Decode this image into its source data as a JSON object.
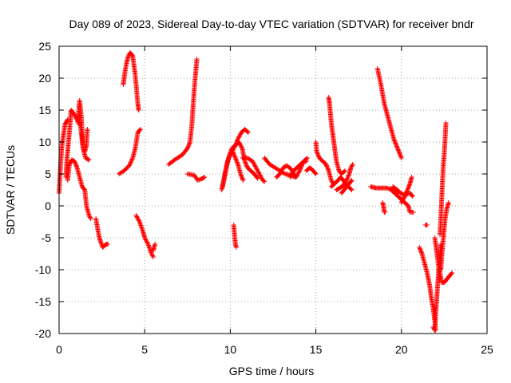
{
  "chart_data": {
    "type": "scatter",
    "title": "Day 089 of 2023, Sidereal Day-to-day VTEC variation (SDTVAR) for receiver bndr",
    "xlabel": "GPS time / hours",
    "ylabel": "SDTVAR / TECUs",
    "xlim": [
      0,
      25
    ],
    "ylim": [
      -20,
      25
    ],
    "x_ticks": [
      0,
      5,
      10,
      15,
      20,
      25
    ],
    "y_ticks": [
      -20,
      -15,
      -10,
      -5,
      0,
      5,
      10,
      15,
      20,
      25
    ],
    "x_tick_labels": [
      "0",
      "5",
      "10",
      "15",
      "20",
      "25"
    ],
    "y_tick_labels": [
      "-20",
      "-15",
      "-10",
      "-5",
      "0",
      "5",
      "10",
      "15",
      "20",
      "25"
    ],
    "grid": true,
    "legend": "none",
    "marker": "+",
    "color": "#ff0000",
    "tracks": [
      [
        [
          0.0,
          2.0
        ],
        [
          0.05,
          4.5
        ],
        [
          0.1,
          7.0
        ],
        [
          0.15,
          9.0
        ],
        [
          0.25,
          11.0
        ],
        [
          0.35,
          12.8
        ],
        [
          0.5,
          13.5
        ]
      ],
      [
        [
          0.4,
          4.5
        ],
        [
          0.45,
          7.0
        ],
        [
          0.55,
          10.0
        ],
        [
          0.65,
          13.0
        ],
        [
          0.7,
          15.0
        ],
        [
          0.85,
          14.5
        ],
        [
          1.05,
          13.5
        ],
        [
          1.25,
          12.5
        ],
        [
          1.4,
          9.0
        ],
        [
          1.55,
          7.5
        ],
        [
          1.75,
          7.2
        ]
      ],
      [
        [
          0.5,
          4.0
        ],
        [
          0.6,
          6.5
        ],
        [
          0.75,
          7.2
        ],
        [
          0.9,
          7.0
        ],
        [
          1.05,
          6.0
        ],
        [
          1.2,
          4.5
        ],
        [
          1.35,
          3.0
        ],
        [
          1.5,
          2.5
        ],
        [
          1.6,
          0.0
        ],
        [
          1.75,
          -1.5
        ],
        [
          1.85,
          -2.0
        ]
      ],
      [
        [
          1.1,
          13.0
        ],
        [
          1.15,
          15.0
        ],
        [
          1.2,
          16.5
        ],
        [
          1.3,
          14.0
        ],
        [
          1.35,
          11.0
        ],
        [
          1.4,
          9.0
        ],
        [
          1.5,
          8.5
        ],
        [
          1.6,
          9.5
        ],
        [
          1.65,
          12.0
        ]
      ],
      [
        [
          2.15,
          -2.0
        ],
        [
          2.25,
          -3.5
        ],
        [
          2.35,
          -5.0
        ],
        [
          2.45,
          -5.8
        ],
        [
          2.55,
          -6.5
        ],
        [
          2.75,
          -6.0
        ],
        [
          2.85,
          -6.0
        ]
      ],
      [
        [
          3.5,
          5.0
        ],
        [
          3.8,
          5.5
        ],
        [
          4.1,
          6.3
        ],
        [
          4.3,
          7.5
        ],
        [
          4.45,
          9.0
        ],
        [
          4.6,
          11.5
        ],
        [
          4.75,
          12.0
        ]
      ],
      [
        [
          3.75,
          19.0
        ],
        [
          3.85,
          21.0
        ],
        [
          3.95,
          22.5
        ],
        [
          4.05,
          23.5
        ],
        [
          4.15,
          24.0
        ],
        [
          4.3,
          23.5
        ],
        [
          4.45,
          20.5
        ],
        [
          4.6,
          16.0
        ],
        [
          4.65,
          15.0
        ]
      ],
      [
        [
          4.5,
          -1.5
        ],
        [
          4.7,
          -2.5
        ],
        [
          4.9,
          -4.0
        ],
        [
          5.0,
          -5.0
        ],
        [
          5.2,
          -6.0
        ],
        [
          5.4,
          -7.5
        ],
        [
          5.5,
          -8.0
        ]
      ],
      [
        [
          5.5,
          -7.0
        ],
        [
          5.6,
          -6.0
        ]
      ],
      [
        [
          6.4,
          6.5
        ],
        [
          6.8,
          7.3
        ],
        [
          7.2,
          8.0
        ],
        [
          7.5,
          9.0
        ],
        [
          7.65,
          10.0
        ],
        [
          7.75,
          12.5
        ],
        [
          7.85,
          16.5
        ],
        [
          7.95,
          20.0
        ],
        [
          8.05,
          23.0
        ]
      ],
      [
        [
          7.5,
          5.0
        ],
        [
          7.9,
          4.8
        ],
        [
          8.1,
          4.0
        ],
        [
          8.3,
          4.2
        ],
        [
          8.5,
          4.5
        ]
      ],
      [
        [
          9.5,
          2.5
        ],
        [
          9.65,
          4.5
        ],
        [
          9.8,
          6.5
        ],
        [
          9.95,
          8.0
        ],
        [
          10.1,
          9.0
        ],
        [
          10.3,
          9.5
        ],
        [
          10.45,
          10.5
        ],
        [
          10.65,
          11.5
        ],
        [
          10.85,
          12.0
        ],
        [
          11.05,
          11.5
        ]
      ],
      [
        [
          9.55,
          3.0
        ],
        [
          9.7,
          5.0
        ],
        [
          9.85,
          7.0
        ],
        [
          10.0,
          8.0
        ],
        [
          10.15,
          8.5
        ],
        [
          10.3,
          7.5
        ],
        [
          10.45,
          6.5
        ],
        [
          10.6,
          5.0
        ],
        [
          10.75,
          4.0
        ]
      ],
      [
        [
          10.1,
          8.5
        ],
        [
          10.3,
          9.5
        ],
        [
          10.5,
          10.0
        ],
        [
          10.7,
          9.0
        ],
        [
          10.85,
          7.0
        ],
        [
          11.0,
          6.0
        ],
        [
          11.2,
          5.5
        ],
        [
          11.4,
          5.0
        ],
        [
          11.6,
          4.3
        ]
      ],
      [
        [
          10.7,
          7.5
        ],
        [
          11.0,
          7.5
        ],
        [
          11.3,
          7.0
        ],
        [
          11.5,
          6.0
        ],
        [
          11.7,
          5.0
        ],
        [
          11.9,
          4.0
        ],
        [
          12.0,
          3.8
        ]
      ],
      [
        [
          10.2,
          -3.0
        ],
        [
          10.25,
          -4.5
        ],
        [
          10.3,
          -6.0
        ],
        [
          10.35,
          -6.5
        ]
      ],
      [
        [
          12.0,
          7.5
        ],
        [
          12.3,
          6.5
        ],
        [
          12.6,
          6.0
        ],
        [
          12.9,
          5.5
        ],
        [
          13.2,
          5.0
        ],
        [
          13.5,
          4.8
        ],
        [
          13.8,
          4.5
        ]
      ],
      [
        [
          12.7,
          4.5
        ],
        [
          12.9,
          5.0
        ],
        [
          13.1,
          6.0
        ],
        [
          13.3,
          6.3
        ],
        [
          13.55,
          5.8
        ],
        [
          13.7,
          5.0
        ],
        [
          13.85,
          4.5
        ],
        [
          14.05,
          5.5
        ],
        [
          14.25,
          6.8
        ],
        [
          14.45,
          7.0
        ]
      ],
      [
        [
          13.5,
          4.5
        ],
        [
          13.7,
          5.5
        ],
        [
          13.9,
          6.0
        ],
        [
          14.1,
          6.5
        ],
        [
          14.3,
          7.0
        ],
        [
          14.5,
          7.5
        ]
      ],
      [
        [
          14.45,
          5.5
        ],
        [
          14.65,
          6.0
        ],
        [
          14.85,
          5.5
        ],
        [
          15.0,
          5.0
        ]
      ],
      [
        [
          15.0,
          10.0
        ],
        [
          15.05,
          8.5
        ],
        [
          15.2,
          7.5
        ],
        [
          15.4,
          7.0
        ],
        [
          15.6,
          6.5
        ],
        [
          15.75,
          5.5
        ],
        [
          15.9,
          4.0
        ],
        [
          16.0,
          3.5
        ]
      ],
      [
        [
          15.75,
          17.0
        ],
        [
          15.8,
          16.0
        ],
        [
          15.9,
          13.0
        ],
        [
          16.0,
          11.0
        ],
        [
          16.1,
          9.0
        ],
        [
          16.2,
          7.0
        ],
        [
          16.35,
          5.5
        ],
        [
          16.5,
          5.0
        ],
        [
          16.7,
          5.5
        ]
      ],
      [
        [
          15.9,
          3.0
        ],
        [
          16.1,
          3.5
        ],
        [
          16.3,
          4.0
        ],
        [
          16.45,
          4.5
        ],
        [
          16.6,
          4.0
        ],
        [
          16.75,
          3.5
        ],
        [
          16.9,
          3.0
        ],
        [
          17.1,
          2.5
        ]
      ],
      [
        [
          16.2,
          2.5
        ],
        [
          16.4,
          2.8
        ],
        [
          16.6,
          3.2
        ],
        [
          16.8,
          4.0
        ],
        [
          16.95,
          5.0
        ],
        [
          17.05,
          6.0
        ],
        [
          17.15,
          6.5
        ]
      ],
      [
        [
          16.5,
          2.0
        ],
        [
          16.65,
          2.5
        ],
        [
          16.8,
          3.0
        ],
        [
          16.95,
          3.5
        ],
        [
          17.1,
          4.0
        ]
      ],
      [
        [
          18.6,
          21.5
        ],
        [
          18.8,
          19.0
        ],
        [
          19.0,
          16.0
        ],
        [
          19.2,
          14.0
        ],
        [
          19.4,
          12.0
        ],
        [
          19.55,
          10.5
        ],
        [
          19.7,
          9.5
        ],
        [
          19.85,
          8.5
        ],
        [
          20.0,
          7.5
        ]
      ],
      [
        [
          18.2,
          3.0
        ],
        [
          18.5,
          2.8
        ],
        [
          18.8,
          2.8
        ],
        [
          19.1,
          2.8
        ],
        [
          19.4,
          2.6
        ],
        [
          19.6,
          2.3
        ],
        [
          19.8,
          2.0
        ]
      ],
      [
        [
          18.9,
          0.5
        ],
        [
          18.95,
          0.0
        ],
        [
          19.0,
          -1.0
        ],
        [
          19.05,
          -1.0
        ]
      ],
      [
        [
          19.5,
          3.0
        ],
        [
          19.75,
          2.5
        ],
        [
          19.95,
          2.0
        ],
        [
          20.1,
          1.8
        ],
        [
          20.3,
          1.8
        ],
        [
          20.5,
          2.0
        ],
        [
          20.65,
          1.5
        ]
      ],
      [
        [
          19.4,
          2.5
        ],
        [
          19.6,
          2.0
        ],
        [
          19.8,
          1.5
        ],
        [
          20.0,
          1.0
        ],
        [
          20.2,
          0.5
        ],
        [
          20.4,
          0.0
        ],
        [
          20.5,
          -1.0
        ],
        [
          20.7,
          -1.0
        ]
      ],
      [
        [
          20.0,
          0.5
        ],
        [
          20.2,
          1.5
        ],
        [
          20.35,
          2.5
        ],
        [
          20.5,
          3.5
        ],
        [
          20.6,
          4.5
        ]
      ],
      [
        [
          21.4,
          -3.0
        ],
        [
          21.5,
          -3.0
        ]
      ],
      [
        [
          21.05,
          -6.5
        ],
        [
          21.2,
          -7.5
        ],
        [
          21.35,
          -9.0
        ],
        [
          21.5,
          -10.5
        ],
        [
          21.65,
          -12.5
        ],
        [
          21.75,
          -14.5
        ],
        [
          21.85,
          -16.0
        ],
        [
          21.95,
          -18.0
        ],
        [
          22.0,
          -19.5
        ]
      ],
      [
        [
          21.85,
          -19.0
        ],
        [
          21.95,
          -19.5
        ],
        [
          22.0,
          -17.0
        ],
        [
          22.05,
          -15.0
        ],
        [
          22.1,
          -13.0
        ],
        [
          22.15,
          -11.0
        ],
        [
          22.2,
          -9.0
        ],
        [
          22.25,
          -7.5
        ],
        [
          22.3,
          -6.0
        ]
      ],
      [
        [
          21.95,
          -5.0
        ],
        [
          22.05,
          -7.0
        ],
        [
          22.15,
          -9.0
        ],
        [
          22.25,
          -10.5
        ],
        [
          22.35,
          -12.0
        ],
        [
          22.5,
          -12.0
        ],
        [
          22.65,
          -11.5
        ],
        [
          22.8,
          -11.0
        ],
        [
          22.95,
          -10.5
        ]
      ],
      [
        [
          22.25,
          -4.5
        ],
        [
          22.3,
          -2.0
        ],
        [
          22.35,
          1.0
        ],
        [
          22.4,
          4.0
        ],
        [
          22.45,
          6.5
        ],
        [
          22.5,
          8.0
        ],
        [
          22.55,
          10.5
        ],
        [
          22.6,
          13.0
        ]
      ],
      [
        [
          22.3,
          -10.0
        ],
        [
          22.35,
          -8.0
        ],
        [
          22.45,
          -5.0
        ],
        [
          22.55,
          -2.0
        ],
        [
          22.65,
          -0.5
        ],
        [
          22.75,
          0.5
        ]
      ]
    ]
  }
}
